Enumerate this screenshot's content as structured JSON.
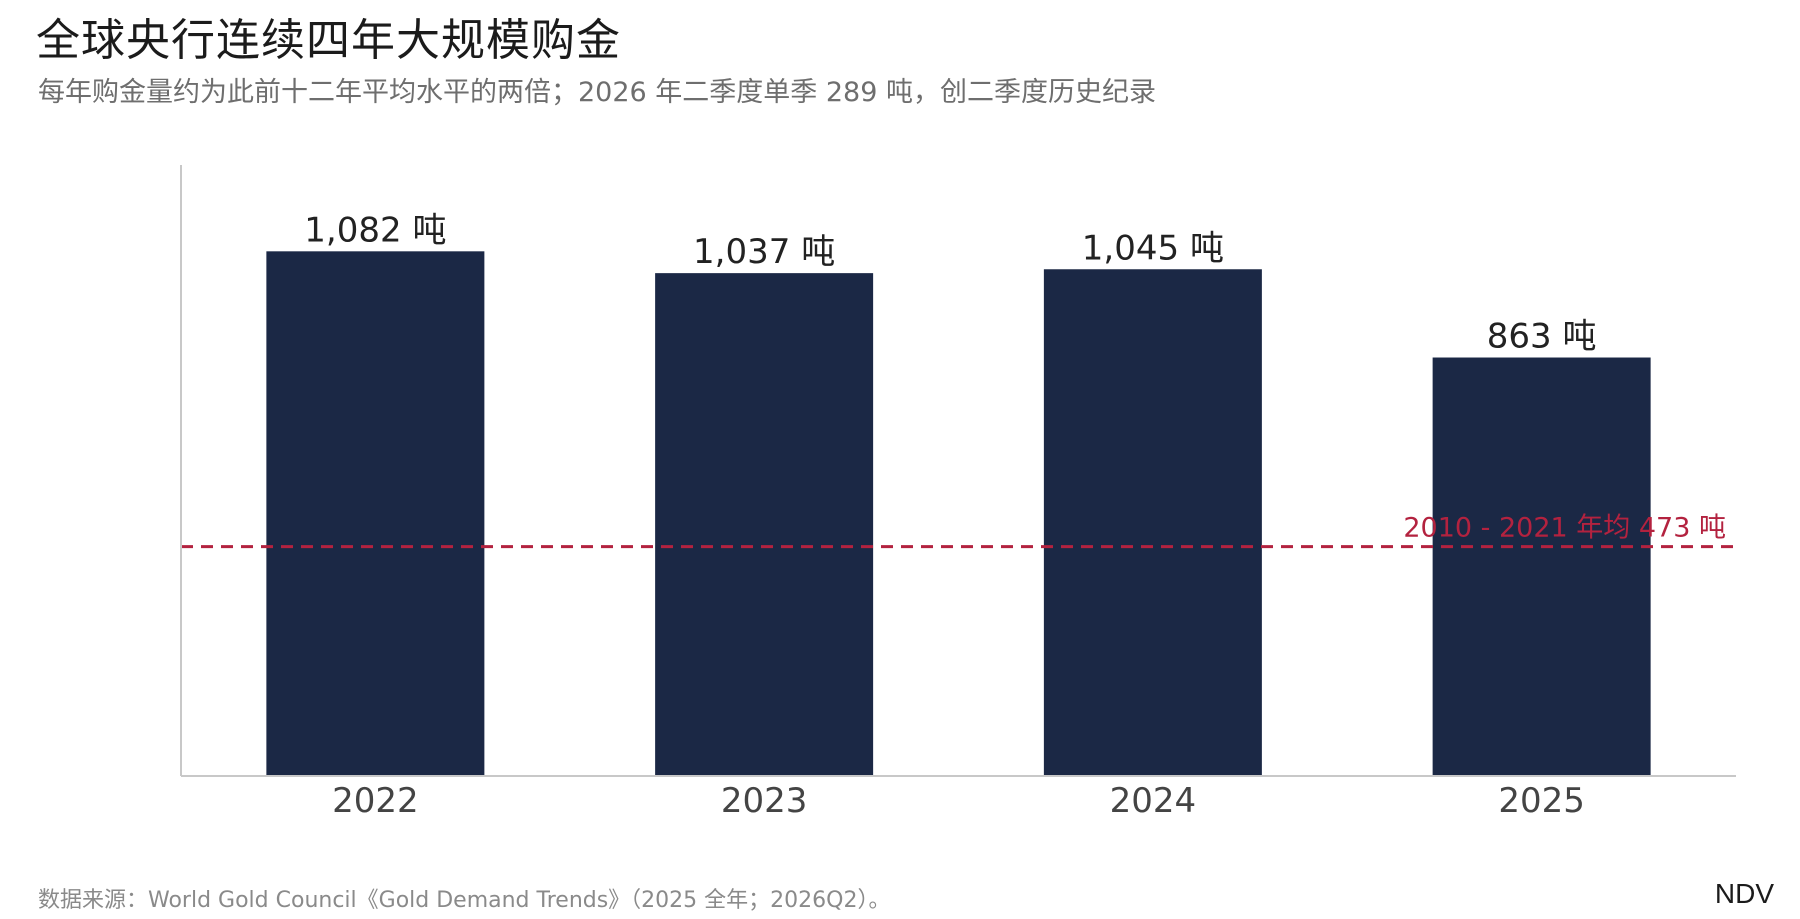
{
  "header": {
    "title": "全球央行连续四年大规模购金",
    "subtitle": "每年购金量约为此前十二年平均水平的两倍；2026 年二季度单季 289 吨，创二季度历史纪录"
  },
  "chart_data": {
    "type": "bar",
    "title": "全球央行连续四年大规模购金",
    "subtitle": "每年购金量约为此前十二年平均水平的两倍；2026 年二季度单季 289 吨，创二季度历史纪录",
    "categories": [
      "2022",
      "2023",
      "2024",
      "2025"
    ],
    "values": [
      1082,
      1037,
      1045,
      863
    ],
    "data_labels": [
      "1,082 吨",
      "1,037 吨",
      "1,045 吨",
      "863 吨"
    ],
    "unit": "吨",
    "xlabel": "",
    "ylabel": "",
    "ylim": [
      0,
      1260
    ],
    "y_ticks_shown": false,
    "grid": false,
    "legend": "none",
    "reference_line": {
      "value": 473,
      "label": "2010 - 2021 年均 473 吨",
      "style": "dashed"
    },
    "colors": {
      "bar": "#1b2845",
      "reference_line": "#b3223f",
      "axis": "#c8c8c8"
    }
  },
  "footer": {
    "source": "数据来源：World Gold Council《Gold Demand Trends》（2025 全年；2026Q2）。",
    "brand": "NDV"
  }
}
